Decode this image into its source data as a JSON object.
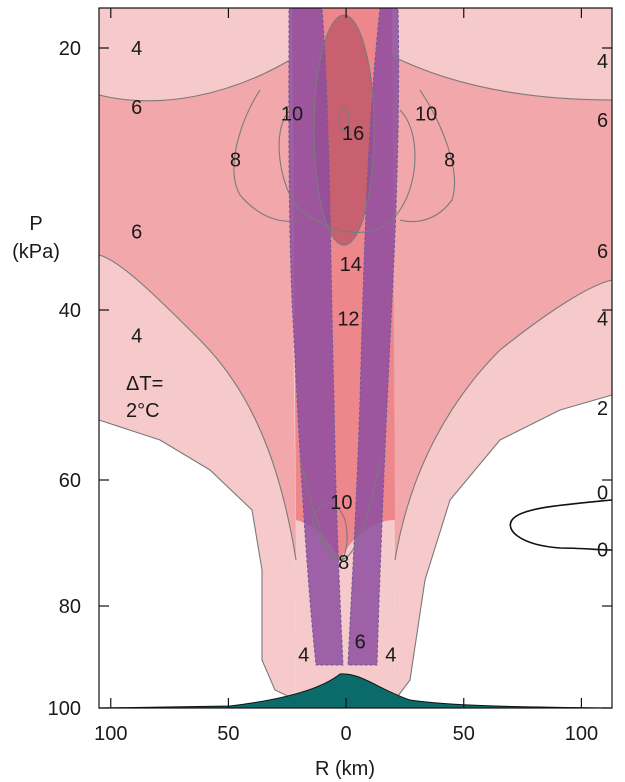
{
  "chart_data": {
    "type": "contour",
    "ylabel_line1": "P",
    "ylabel_line2": "(kPa)",
    "xlabel": "R (km)",
    "x_ticks": [
      {
        "value": -100,
        "label": "100"
      },
      {
        "value": -50,
        "label": "50"
      },
      {
        "value": 0,
        "label": "0"
      },
      {
        "value": 50,
        "label": "50"
      },
      {
        "value": 100,
        "label": "100"
      }
    ],
    "y_ticks": [
      {
        "value": 20,
        "label": "20"
      },
      {
        "value": 40,
        "label": "40"
      },
      {
        "value": 60,
        "label": "60"
      },
      {
        "value": 80,
        "label": "80"
      },
      {
        "value": 100,
        "label": "100"
      }
    ],
    "xlim": [
      -105,
      113
    ],
    "ylim": [
      100,
      15
    ],
    "annotation_line1": "ΔT=",
    "annotation_line2": "2°C",
    "contour_labels": [
      {
        "text": "4",
        "r": -89,
        "p": 20
      },
      {
        "text": "6",
        "r": -89,
        "p": 24.5
      },
      {
        "text": "6",
        "r": -89,
        "p": 34
      },
      {
        "text": "4",
        "r": -89,
        "p": 43
      },
      {
        "text": "10",
        "r": -23,
        "p": 25
      },
      {
        "text": "8",
        "r": -47,
        "p": 28.5
      },
      {
        "text": "16",
        "r": 3,
        "p": 26.5
      },
      {
        "text": "14",
        "r": 2,
        "p": 36.5
      },
      {
        "text": "12",
        "r": 1,
        "p": 41
      },
      {
        "text": "10",
        "r": 34,
        "p": 25
      },
      {
        "text": "8",
        "r": 44,
        "p": 28.5
      },
      {
        "text": "10",
        "r": -2,
        "p": 63.5
      },
      {
        "text": "8",
        "r": -1,
        "p": 73
      },
      {
        "text": "6",
        "r": 6,
        "p": 87
      },
      {
        "text": "4",
        "r": -18,
        "p": 89.5
      },
      {
        "text": "4",
        "r": 19,
        "p": 89.5
      },
      {
        "text": "4",
        "r": 109,
        "p": 21
      },
      {
        "text": "6",
        "r": 109,
        "p": 25.5
      },
      {
        "text": "6",
        "r": 109,
        "p": 35.5
      },
      {
        "text": "4",
        "r": 109,
        "p": 41
      },
      {
        "text": "2",
        "r": 109,
        "p": 51.5
      },
      {
        "text": "0",
        "r": 109,
        "p": 62
      },
      {
        "text": "0",
        "r": 109,
        "p": 71
      }
    ],
    "colors": {
      "dT_0_2": "#ffffff",
      "dT_2_6": "#f6c9cb",
      "dT_6_10": "#f2a7aa",
      "dT_10_14": "#ee878c",
      "dT_14_plus": "#c9606f",
      "eyewall_band": "#8e4ea0",
      "terrain": "#0b6b6b"
    }
  }
}
